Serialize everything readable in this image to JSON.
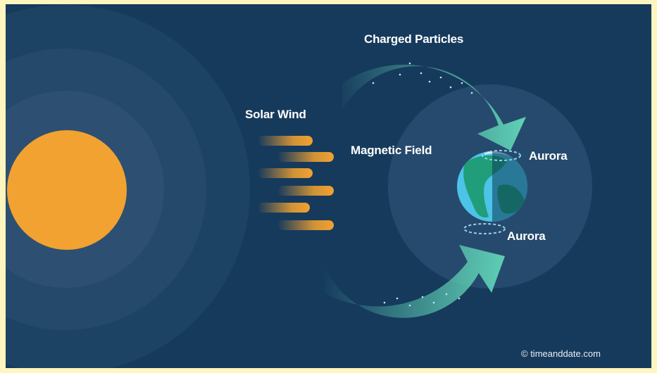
{
  "labels": {
    "charged_particles": "Charged Particles",
    "solar_wind": "Solar Wind",
    "magnetic_field": "Magnetic Field",
    "aurora_north": "Aurora",
    "aurora_south": "Aurora"
  },
  "credit": "© timeanddate.com",
  "colors": {
    "background": "#163a5c",
    "sun": "#f2a230",
    "sun_halo": "#2e5373",
    "magnetosphere": "#264a6d",
    "particle_arrow": "#5fd0b5",
    "solar_wind_streak": "#f2a230",
    "earth_ocean_day": "#4dc3e8",
    "earth_ocean_night": "#1b6f86",
    "earth_land": "#1f9e79",
    "aurora_ring": "#8fd3e6",
    "outer_frame": "#fef5bf"
  },
  "icons": {
    "sun": "sun-icon",
    "earth": "earth-icon"
  }
}
